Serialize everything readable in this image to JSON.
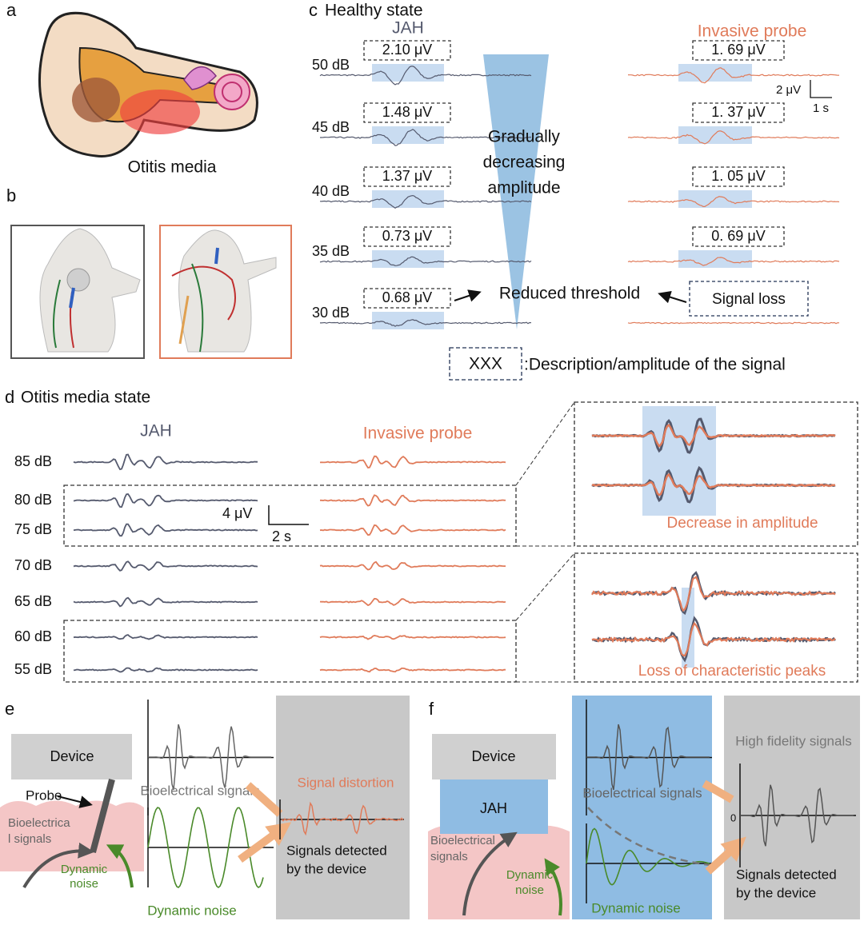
{
  "a": {
    "label": "a",
    "caption": "Otitis media"
  },
  "b": {
    "label": "b"
  },
  "c": {
    "label": "c",
    "title": "Healthy state",
    "jah": "JAH",
    "probe": "Invasive probe",
    "rows": [
      {
        "level": "50 dB",
        "jah": "2.10 μV",
        "probe": "1. 69 μV"
      },
      {
        "level": "45 dB",
        "jah": "1.48 μV",
        "probe": "1. 37 μV"
      },
      {
        "level": "40 dB",
        "jah": "1.37 μV",
        "probe": "1. 05 μV"
      },
      {
        "level": "35 dB",
        "jah": "0.73 μV",
        "probe": "0. 69 μV"
      },
      {
        "level": "30 dB",
        "jah": "0.68 μV",
        "probe": null
      }
    ],
    "scale_y": "2 μV",
    "scale_x": "1 s",
    "arrow_text": [
      "Gradually",
      "decreasing",
      "amplitude"
    ],
    "reduced": "Reduced threshold",
    "loss": "Signal loss",
    "legend_box": "XXX",
    "legend_text": ":Description/amplitude of the signal"
  },
  "d": {
    "label": "d",
    "title": "Otitis media state",
    "jah": "JAH",
    "probe": "Invasive probe",
    "levels": [
      "85 dB",
      "80 dB",
      "75 dB",
      "70 dB",
      "65 dB",
      "60 dB",
      "55 dB"
    ],
    "scale_y": "4 μV",
    "scale_x": "2 s",
    "zoom1": "Decrease in amplitude",
    "zoom2": "Loss of characteristic peaks"
  },
  "e": {
    "label": "e",
    "device": "Device",
    "probe": "Probe",
    "tissue": [
      "Bioelectrica",
      "l signals"
    ],
    "noise": [
      "Dynamic",
      "noise"
    ],
    "bio": "Bioelectrical signals",
    "dyn": "Dynamic noise",
    "distortion": "Signal distortion",
    "detected": [
      "Signals detected",
      "by the device"
    ]
  },
  "f": {
    "label": "f",
    "device": "Device",
    "jah": "JAH",
    "tissue": [
      "Bioelectrical",
      "signals"
    ],
    "noise": [
      "Dynamic",
      "noise"
    ],
    "bio": "Bioelectrical signals",
    "dyn": "Dynamic noise",
    "fidelity": "High fidelity signals",
    "zero": "0",
    "detected": [
      "Signals detected",
      "by the device"
    ]
  }
}
